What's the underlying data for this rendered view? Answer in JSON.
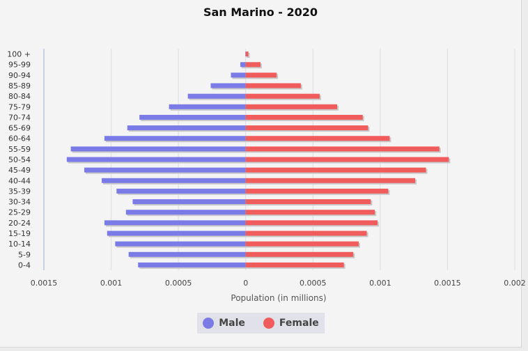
{
  "chart_data": {
    "type": "bar",
    "orientation": "horizontal",
    "title": "San Marino - 2020",
    "xlabel": "Population (in millions)",
    "ylabel": "",
    "categories": [
      "100 +",
      "95-99",
      "90-94",
      "85-89",
      "80-84",
      "75-79",
      "70-74",
      "65-69",
      "60-64",
      "55-59",
      "50-54",
      "45-49",
      "40-44",
      "35-39",
      "30-34",
      "25-29",
      "20-24",
      "15-19",
      "10-14",
      "5-9",
      "0-4"
    ],
    "series": [
      {
        "name": "Male",
        "color": "#7b7be8",
        "values": [
          3e-06,
          4e-05,
          0.00011,
          0.00026,
          0.00043,
          0.00057,
          0.00079,
          0.00088,
          0.00105,
          0.0013,
          0.00133,
          0.0012,
          0.00107,
          0.00096,
          0.00084,
          0.00089,
          0.00105,
          0.00103,
          0.00097,
          0.00087,
          0.0008
        ]
      },
      {
        "name": "Female",
        "color": "#f05b5b",
        "values": [
          2e-05,
          0.00011,
          0.00023,
          0.00041,
          0.00055,
          0.00068,
          0.00087,
          0.00091,
          0.00107,
          0.00144,
          0.00151,
          0.00134,
          0.00126,
          0.00106,
          0.00093,
          0.00096,
          0.00098,
          0.0009,
          0.00084,
          0.0008,
          0.00073
        ]
      }
    ],
    "xlim": [
      -0.0015,
      0.002
    ],
    "xticks": [
      -0.0015,
      -0.001,
      -0.0005,
      0,
      0.0005,
      0.001,
      0.0015,
      0.002
    ],
    "xtick_labels": [
      "0.0015",
      "0.001",
      "0.0005",
      "0",
      "0.0005",
      "0.001",
      "0.0015",
      "0.002"
    ],
    "grid": true,
    "legend_position": "bottom"
  }
}
